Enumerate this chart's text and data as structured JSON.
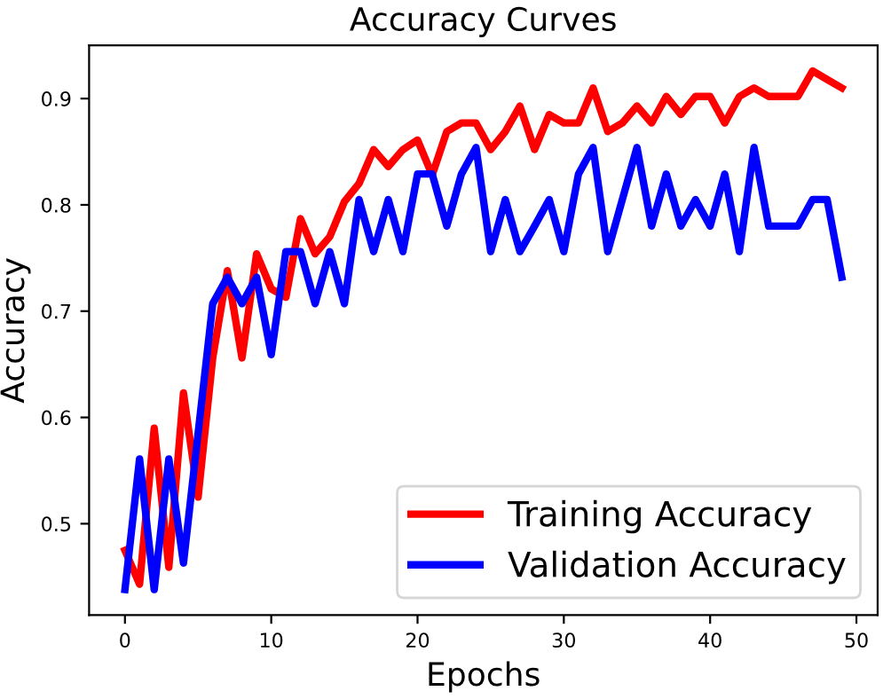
{
  "chart_data": {
    "type": "line",
    "title": "Accuracy Curves",
    "xlabel": "Epochs",
    "ylabel": "Accuracy",
    "x": [
      0,
      1,
      2,
      3,
      4,
      5,
      6,
      7,
      8,
      9,
      10,
      11,
      12,
      13,
      14,
      15,
      16,
      17,
      18,
      19,
      20,
      21,
      22,
      23,
      24,
      25,
      26,
      27,
      28,
      29,
      30,
      31,
      32,
      33,
      34,
      35,
      36,
      37,
      38,
      39,
      40,
      41,
      42,
      43,
      44,
      45,
      46,
      47,
      48,
      49
    ],
    "series": [
      {
        "name": "Training Accuracy",
        "color": "#ff0000",
        "values": [
          0.475,
          0.443,
          0.59,
          0.459,
          0.623,
          0.525,
          0.656,
          0.738,
          0.656,
          0.754,
          0.721,
          0.713,
          0.787,
          0.754,
          0.77,
          0.803,
          0.82,
          0.852,
          0.836,
          0.852,
          0.861,
          0.828,
          0.869,
          0.877,
          0.877,
          0.852,
          0.869,
          0.893,
          0.852,
          0.885,
          0.877,
          0.877,
          0.91,
          0.869,
          0.877,
          0.893,
          0.877,
          0.902,
          0.885,
          0.902,
          0.902,
          0.877,
          0.902,
          0.91,
          0.902,
          0.902,
          0.902,
          0.926,
          0.918,
          0.91
        ]
      },
      {
        "name": "Validation Accuracy",
        "color": "#0000ff",
        "values": [
          0.438,
          0.561,
          0.438,
          0.561,
          0.463,
          0.585,
          0.707,
          0.732,
          0.707,
          0.732,
          0.659,
          0.756,
          0.756,
          0.707,
          0.756,
          0.707,
          0.805,
          0.756,
          0.805,
          0.756,
          0.829,
          0.829,
          0.78,
          0.829,
          0.854,
          0.756,
          0.805,
          0.756,
          0.78,
          0.805,
          0.756,
          0.829,
          0.854,
          0.756,
          0.805,
          0.854,
          0.78,
          0.829,
          0.78,
          0.805,
          0.78,
          0.829,
          0.756,
          0.854,
          0.78,
          0.78,
          0.78,
          0.805,
          0.805,
          0.732
        ]
      }
    ],
    "xlim": [
      -2.45,
      51.45
    ],
    "ylim": [
      0.414,
      0.95
    ],
    "xticks": [
      0,
      10,
      20,
      30,
      40,
      50
    ],
    "yticks": [
      0.5,
      0.6,
      0.7,
      0.8,
      0.9
    ],
    "grid": false,
    "legend": "bottom right",
    "marker": "none",
    "line_style": "solid"
  }
}
